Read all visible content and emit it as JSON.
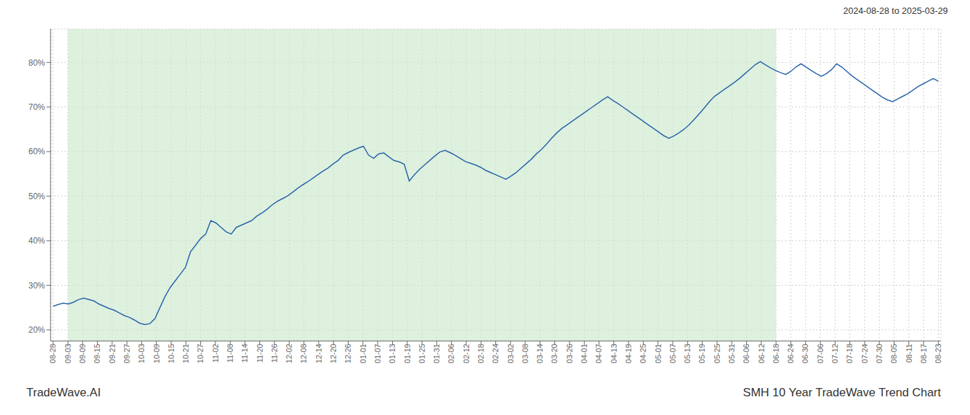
{
  "chart_data": {
    "type": "line",
    "title": "SMH 10 Year TradeWave Trend Chart",
    "subtitle": "2024-08-28 to 2025-03-29",
    "annotations": [
      "TradeWave.AI"
    ],
    "color": "#2563a8",
    "grid": true,
    "xlim": [
      -0.5,
      174.5
    ],
    "xticks": [
      {
        "value": 0,
        "label": "08-28"
      },
      {
        "value": 2.9,
        "label": "09-03"
      },
      {
        "value": 5.8,
        "label": "09-09"
      },
      {
        "value": 8.7,
        "label": "09-15"
      },
      {
        "value": 11.6,
        "label": "09-21"
      },
      {
        "value": 14.5,
        "label": "09-27"
      },
      {
        "value": 17.4,
        "label": "10-03"
      },
      {
        "value": 20.3,
        "label": "10-09"
      },
      {
        "value": 23.2,
        "label": "10-15"
      },
      {
        "value": 26.1,
        "label": "10-21"
      },
      {
        "value": 29,
        "label": "10-27"
      },
      {
        "value": 31.9,
        "label": "11-02"
      },
      {
        "value": 34.8,
        "label": "11-08"
      },
      {
        "value": 37.7,
        "label": "11-14"
      },
      {
        "value": 40.6,
        "label": "11-20"
      },
      {
        "value": 43.5,
        "label": "11-26"
      },
      {
        "value": 46.4,
        "label": "12-02"
      },
      {
        "value": 49.3,
        "label": "12-08"
      },
      {
        "value": 52.2,
        "label": "12-14"
      },
      {
        "value": 55.1,
        "label": "12-20"
      },
      {
        "value": 58,
        "label": "12-26"
      },
      {
        "value": 60.9,
        "label": "01-01"
      },
      {
        "value": 63.8,
        "label": "01-07"
      },
      {
        "value": 66.7,
        "label": "01-13"
      },
      {
        "value": 69.6,
        "label": "01-19"
      },
      {
        "value": 72.5,
        "label": "01-25"
      },
      {
        "value": 75.4,
        "label": "01-31"
      },
      {
        "value": 78.3,
        "label": "02-06"
      },
      {
        "value": 81.2,
        "label": "02-12"
      },
      {
        "value": 84.1,
        "label": "02-18"
      },
      {
        "value": 87,
        "label": "02-24"
      },
      {
        "value": 89.9,
        "label": "03-02"
      },
      {
        "value": 92.8,
        "label": "03-08"
      },
      {
        "value": 95.7,
        "label": "03-14"
      },
      {
        "value": 98.6,
        "label": "03-20"
      },
      {
        "value": 101.5,
        "label": "03-26"
      },
      {
        "value": 104.4,
        "label": "04-01"
      },
      {
        "value": 107.3,
        "label": "04-07"
      },
      {
        "value": 110.2,
        "label": "04-13"
      },
      {
        "value": 113.1,
        "label": "04-19"
      },
      {
        "value": 116,
        "label": "04-25"
      },
      {
        "value": 118.9,
        "label": "05-01"
      },
      {
        "value": 121.8,
        "label": "05-07"
      },
      {
        "value": 124.7,
        "label": "05-13"
      },
      {
        "value": 127.6,
        "label": "05-19"
      },
      {
        "value": 130.5,
        "label": "05-25"
      },
      {
        "value": 133.4,
        "label": "05-31"
      },
      {
        "value": 136.3,
        "label": "06-06"
      },
      {
        "value": 139.2,
        "label": "06-12"
      },
      {
        "value": 142.1,
        "label": "06-18"
      },
      {
        "value": 145,
        "label": "06-24"
      },
      {
        "value": 147.9,
        "label": "06-30"
      },
      {
        "value": 150.8,
        "label": "07-06"
      },
      {
        "value": 153.7,
        "label": "07-12"
      },
      {
        "value": 156.6,
        "label": "07-18"
      },
      {
        "value": 159.5,
        "label": "07-24"
      },
      {
        "value": 162.4,
        "label": "07-30"
      },
      {
        "value": 165.3,
        "label": "08-05"
      },
      {
        "value": 168.2,
        "label": "08-11"
      },
      {
        "value": 171.1,
        "label": "08-17"
      },
      {
        "value": 174,
        "label": "08-23"
      }
    ],
    "ylim": [
      0.175,
      0.875
    ],
    "yticks": [
      {
        "value": 0.2,
        "label": "20%"
      },
      {
        "value": 0.3,
        "label": "30%"
      },
      {
        "value": 0.4,
        "label": "40%"
      },
      {
        "value": 0.5,
        "label": "50%"
      },
      {
        "value": 0.6,
        "label": "60%"
      },
      {
        "value": 0.7,
        "label": "70%"
      },
      {
        "value": 0.8,
        "label": "80%"
      }
    ],
    "shaded_region": {
      "x": [
        2.9,
        142.1
      ],
      "color": "#cde8cd"
    },
    "x": [
      0,
      1,
      2,
      3,
      4,
      5,
      6,
      7,
      8,
      9,
      10,
      11,
      12,
      13,
      14,
      15,
      16,
      17,
      18,
      19,
      20,
      21,
      22,
      23,
      24,
      25,
      26,
      27,
      28,
      29,
      30,
      31,
      32,
      33,
      34,
      35,
      36,
      37,
      38,
      39,
      40,
      41,
      42,
      43,
      44,
      45,
      46,
      47,
      48,
      49,
      50,
      51,
      52,
      53,
      54,
      55,
      56,
      57,
      58,
      59,
      60,
      61,
      62,
      63,
      64,
      65,
      66,
      67,
      68,
      69,
      70,
      71,
      72,
      73,
      74,
      75,
      76,
      77,
      78,
      79,
      80,
      81,
      82,
      83,
      84,
      85,
      86,
      87,
      88,
      89,
      90,
      91,
      92,
      93,
      94,
      95,
      96,
      97,
      98,
      99,
      100,
      101,
      102,
      103,
      104,
      105,
      106,
      107,
      108,
      109,
      110,
      111,
      112,
      113,
      114,
      115,
      116,
      117,
      118,
      119,
      120,
      121,
      122,
      123,
      124,
      125,
      126,
      127,
      128,
      129,
      130,
      131,
      132,
      133,
      134,
      135,
      136,
      137,
      138,
      139,
      140,
      141,
      142,
      143,
      144,
      145,
      146,
      147,
      148,
      149,
      150,
      151,
      152,
      153,
      154,
      155,
      156,
      157,
      158,
      159,
      160,
      161,
      162,
      163,
      164,
      165,
      166,
      167,
      168,
      169,
      170,
      171,
      172,
      173,
      174
    ],
    "values": [
      0.253,
      0.257,
      0.26,
      0.258,
      0.262,
      0.268,
      0.271,
      0.268,
      0.265,
      0.258,
      0.253,
      0.248,
      0.244,
      0.238,
      0.232,
      0.228,
      0.222,
      0.215,
      0.212,
      0.214,
      0.225,
      0.25,
      0.275,
      0.295,
      0.31,
      0.325,
      0.34,
      0.375,
      0.39,
      0.405,
      0.415,
      0.445,
      0.44,
      0.43,
      0.42,
      0.415,
      0.43,
      0.435,
      0.44,
      0.445,
      0.455,
      0.462,
      0.47,
      0.48,
      0.488,
      0.494,
      0.5,
      0.508,
      0.517,
      0.525,
      0.532,
      0.54,
      0.548,
      0.556,
      0.563,
      0.572,
      0.58,
      0.592,
      0.598,
      0.603,
      0.608,
      0.612,
      0.592,
      0.585,
      0.595,
      0.597,
      0.588,
      0.58,
      0.577,
      0.572,
      0.534,
      0.548,
      0.56,
      0.57,
      0.58,
      0.59,
      0.599,
      0.603,
      0.598,
      0.592,
      0.585,
      0.578,
      0.574,
      0.57,
      0.565,
      0.558,
      0.553,
      0.548,
      0.543,
      0.538,
      0.545,
      0.553,
      0.563,
      0.573,
      0.583,
      0.595,
      0.605,
      0.617,
      0.63,
      0.642,
      0.652,
      0.66,
      0.668,
      0.676,
      0.684,
      0.692,
      0.7,
      0.708,
      0.716,
      0.723,
      0.715,
      0.708,
      0.7,
      0.692,
      0.684,
      0.676,
      0.668,
      0.66,
      0.652,
      0.644,
      0.636,
      0.63,
      0.635,
      0.642,
      0.65,
      0.66,
      0.672,
      0.685,
      0.698,
      0.712,
      0.724,
      0.732,
      0.74,
      0.748,
      0.756,
      0.765,
      0.775,
      0.785,
      0.795,
      0.802,
      0.795,
      0.788,
      0.782,
      0.777,
      0.773,
      0.78,
      0.79,
      0.797,
      0.79,
      0.782,
      0.775,
      0.769,
      0.775,
      0.784,
      0.797,
      0.79,
      0.78,
      0.77,
      0.762,
      0.754,
      0.746,
      0.738,
      0.73,
      0.722,
      0.716,
      0.712,
      0.718,
      0.724,
      0.73,
      0.738,
      0.746,
      0.752,
      0.758,
      0.764,
      0.758
    ]
  }
}
